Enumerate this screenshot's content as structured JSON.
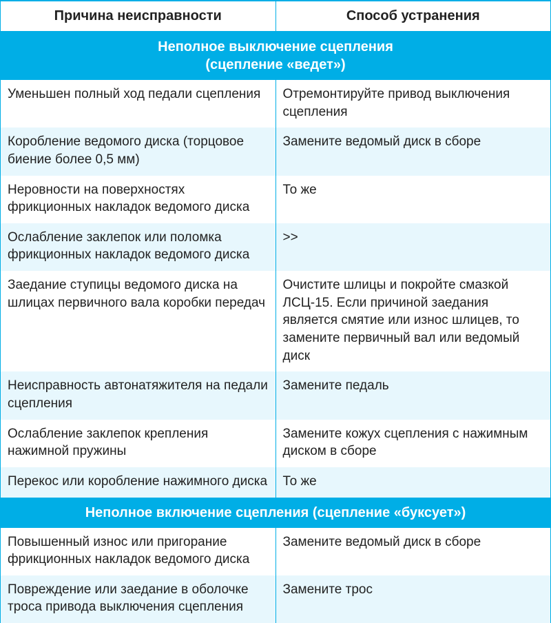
{
  "table": {
    "columns": [
      "Причина неисправности",
      "Способ устранения"
    ],
    "header_fontsize": 20,
    "header_fontweight": "bold",
    "section_bg_color": "#00aee6",
    "section_text_color": "#ffffff",
    "section_fontsize": 20,
    "section_fontweight": "bold",
    "row_fontsize": 19,
    "row_text_color": "#222222",
    "alt_row_bg_color": "#e7f7fd",
    "border_color": "#00aee6",
    "sections": [
      {
        "title_line1": "Неполное выключение сцепления",
        "title_line2": "(сцепление «ведет»)",
        "rows": [
          {
            "cause": "Уменьшен полный ход педали сцепления",
            "fix": "Отремонтируйте привод выключения сцепления"
          },
          {
            "cause": "Коробление ведомого диска (торцовое биение более 0,5 мм)",
            "fix": "Замените ведомый диск в сборе"
          },
          {
            "cause": "Неровности на поверхностях фрикционных накладок ведомого диска",
            "fix": "То же"
          },
          {
            "cause": "Ослабление заклепок или поломка фрикционных накладок ведомого диска",
            "fix": ">>"
          },
          {
            "cause": "Заедание ступицы ведомого диска на шлицах первичного вала коробки передач",
            "fix": "Очистите шлицы и покройте смазкой ЛСЦ-15. Если причиной заедания является смятие или износ шлицев, то замените первичный вал или ведомый диск"
          },
          {
            "cause": "Неисправность автонатяжителя на педали сцепления",
            "fix": "Замените педаль"
          },
          {
            "cause": "Ослабление заклепок крепления нажимной пружины",
            "fix": "Замените кожух сцепления с нажимным диском в сборе"
          },
          {
            "cause": "Перекос или коробление нажимного диска",
            "fix": "То же"
          }
        ]
      },
      {
        "title_line1": "Неполное включение сцепления (сцепление «буксует»)",
        "rows": [
          {
            "cause": "Повышенный износ или пригорание фрикционных накладок ведомого диска",
            "fix": "Замените ведомый диск в сборе"
          },
          {
            "cause": "Повреждение или заедание в оболочке троса привода выключения сцепления",
            "fix": "Замените трос"
          }
        ]
      }
    ]
  }
}
